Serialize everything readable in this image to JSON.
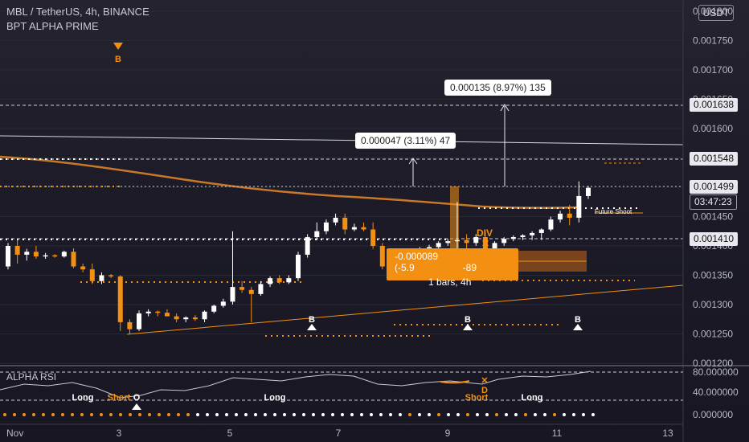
{
  "header": {
    "title": "MBL / TetherUS, 4h, BINANCE",
    "indicator": "BPT ALPHA PRIME",
    "currency_button": "USDT"
  },
  "price_axis": {
    "ticks": [
      "0.001800",
      "0.001750",
      "0.001700",
      "0.001650",
      "0.001600",
      "0.001550",
      "0.001500",
      "0.001450",
      "0.001400",
      "0.001350",
      "0.001300",
      "0.001250",
      "0.001200"
    ],
    "tags": {
      "top": "0.001638",
      "mid": "0.001548",
      "last": "0.001499",
      "countdown": "03:47:23",
      "low": "0.001410"
    }
  },
  "time_axis": {
    "ticks": [
      "Nov",
      "3",
      "5",
      "7",
      "9",
      "11",
      "13"
    ]
  },
  "annotations": {
    "measure_1": "0.000135 (8.97%) 135",
    "measure_2": "0.000047 (3.11%) 47",
    "measure_3_line1": "-0.000089 (-5.9                  -89",
    "measure_3_line2": "1 bars, 4h",
    "div_label": "DIV",
    "x_mark": "✕",
    "d_label": "D",
    "signal_b_top": "B",
    "signal_b_1": "B",
    "signal_b_2": "B",
    "signal_b_3": "B",
    "future_shoot": "Future Shoot"
  },
  "rsi_panel": {
    "title": "ALPHA RSI",
    "ticks": [
      "80.000000",
      "40.000000",
      "0.000000"
    ],
    "labels": {
      "long_1": "Long",
      "short_1": "Short",
      "o": "O",
      "long_2": "Long",
      "short_2": "Short",
      "long_3": "Long",
      "x": "✕",
      "d": "D"
    }
  },
  "colors": {
    "background": "#1c1b27",
    "candle_up": "#ffffff",
    "candle_down": "#f39012",
    "orange": "#f39012",
    "ma_line": "#c9782a",
    "label_bg": "#ffffff"
  },
  "chart_data": {
    "type": "candlestick",
    "symbol": "MBL / TetherUS",
    "interval": "4h",
    "exchange": "BINANCE",
    "price_range": [
      0.0012,
      0.0018
    ],
    "candles": [
      {
        "o": 0.001365,
        "h": 0.001405,
        "l": 0.00136,
        "c": 0.0014
      },
      {
        "o": 0.0014,
        "h": 0.00141,
        "l": 0.00137,
        "c": 0.001385
      },
      {
        "o": 0.001385,
        "h": 0.001395,
        "l": 0.001375,
        "c": 0.00139
      },
      {
        "o": 0.00139,
        "h": 0.0014,
        "l": 0.001378,
        "c": 0.001382
      },
      {
        "o": 0.001382,
        "h": 0.001388,
        "l": 0.001378,
        "c": 0.001384
      },
      {
        "o": 0.001384,
        "h": 0.001386,
        "l": 0.00138,
        "c": 0.001382
      },
      {
        "o": 0.001382,
        "h": 0.001392,
        "l": 0.00138,
        "c": 0.00139
      },
      {
        "o": 0.00139,
        "h": 0.001396,
        "l": 0.001362,
        "c": 0.001365
      },
      {
        "o": 0.001365,
        "h": 0.00137,
        "l": 0.001355,
        "c": 0.00136
      },
      {
        "o": 0.00136,
        "h": 0.00137,
        "l": 0.001335,
        "c": 0.00134
      },
      {
        "o": 0.00134,
        "h": 0.001355,
        "l": 0.001335,
        "c": 0.00135
      },
      {
        "o": 0.00135,
        "h": 0.001352,
        "l": 0.001345,
        "c": 0.001348
      },
      {
        "o": 0.001348,
        "h": 0.00135,
        "l": 0.001255,
        "c": 0.00127
      },
      {
        "o": 0.00127,
        "h": 0.001275,
        "l": 0.00125,
        "c": 0.001258
      },
      {
        "o": 0.001258,
        "h": 0.00129,
        "l": 0.001255,
        "c": 0.001285
      },
      {
        "o": 0.001285,
        "h": 0.001292,
        "l": 0.00128,
        "c": 0.001288
      },
      {
        "o": 0.001288,
        "h": 0.00129,
        "l": 0.00128,
        "c": 0.001286
      },
      {
        "o": 0.001286,
        "h": 0.001292,
        "l": 0.00128,
        "c": 0.00128
      },
      {
        "o": 0.00128,
        "h": 0.001285,
        "l": 0.00127,
        "c": 0.001275
      },
      {
        "o": 0.001275,
        "h": 0.00128,
        "l": 0.00127,
        "c": 0.001278
      },
      {
        "o": 0.001278,
        "h": 0.001282,
        "l": 0.001272,
        "c": 0.001275
      },
      {
        "o": 0.001275,
        "h": 0.00129,
        "l": 0.00127,
        "c": 0.001288
      },
      {
        "o": 0.001288,
        "h": 0.0013,
        "l": 0.001285,
        "c": 0.001298
      },
      {
        "o": 0.001298,
        "h": 0.00131,
        "l": 0.001295,
        "c": 0.001305
      },
      {
        "o": 0.001305,
        "h": 0.001425,
        "l": 0.0013,
        "c": 0.00133
      },
      {
        "o": 0.00133,
        "h": 0.00134,
        "l": 0.00132,
        "c": 0.001325
      },
      {
        "o": 0.001325,
        "h": 0.00133,
        "l": 0.00127,
        "c": 0.001318
      },
      {
        "o": 0.001318,
        "h": 0.00134,
        "l": 0.001315,
        "c": 0.001335
      },
      {
        "o": 0.001335,
        "h": 0.001348,
        "l": 0.00133,
        "c": 0.001345
      },
      {
        "o": 0.001345,
        "h": 0.00135,
        "l": 0.001335,
        "c": 0.001338
      },
      {
        "o": 0.001338,
        "h": 0.00135,
        "l": 0.001335,
        "c": 0.001345
      },
      {
        "o": 0.001345,
        "h": 0.00139,
        "l": 0.00134,
        "c": 0.001385
      },
      {
        "o": 0.001385,
        "h": 0.00142,
        "l": 0.00138,
        "c": 0.001415
      },
      {
        "o": 0.001415,
        "h": 0.00144,
        "l": 0.00141,
        "c": 0.001425
      },
      {
        "o": 0.001425,
        "h": 0.001445,
        "l": 0.00142,
        "c": 0.00144
      },
      {
        "o": 0.00144,
        "h": 0.001455,
        "l": 0.001435,
        "c": 0.001448
      },
      {
        "o": 0.001448,
        "h": 0.001455,
        "l": 0.00142,
        "c": 0.001428
      },
      {
        "o": 0.001428,
        "h": 0.001438,
        "l": 0.001425,
        "c": 0.001432
      },
      {
        "o": 0.001432,
        "h": 0.00144,
        "l": 0.001425,
        "c": 0.001428
      },
      {
        "o": 0.001428,
        "h": 0.00144,
        "l": 0.001395,
        "c": 0.0014
      },
      {
        "o": 0.0014,
        "h": 0.001405,
        "l": 0.00136,
        "c": 0.001365
      },
      {
        "o": 0.001365,
        "h": 0.00137,
        "l": 0.001345,
        "c": 0.00135
      },
      {
        "o": 0.00135,
        "h": 0.00138,
        "l": 0.001345,
        "c": 0.001372
      },
      {
        "o": 0.001372,
        "h": 0.001395,
        "l": 0.00137,
        "c": 0.00139
      },
      {
        "o": 0.00139,
        "h": 0.001398,
        "l": 0.001385,
        "c": 0.001392
      },
      {
        "o": 0.001392,
        "h": 0.001402,
        "l": 0.001385,
        "c": 0.001398
      },
      {
        "o": 0.001398,
        "h": 0.001408,
        "l": 0.001395,
        "c": 0.001405
      },
      {
        "o": 0.001405,
        "h": 0.001412,
        "l": 0.0014,
        "c": 0.001408
      },
      {
        "o": 0.001408,
        "h": 0.001475,
        "l": 0.001395,
        "c": 0.00141
      },
      {
        "o": 0.00141,
        "h": 0.00142,
        "l": 0.001395,
        "c": 0.001405
      },
      {
        "o": 0.001405,
        "h": 0.00142,
        "l": 0.0014,
        "c": 0.001415
      },
      {
        "o": 0.001415,
        "h": 0.001425,
        "l": 0.00139,
        "c": 0.001395
      },
      {
        "o": 0.001395,
        "h": 0.001408,
        "l": 0.00139,
        "c": 0.001405
      },
      {
        "o": 0.001405,
        "h": 0.001415,
        "l": 0.0014,
        "c": 0.001412
      },
      {
        "o": 0.001412,
        "h": 0.001418,
        "l": 0.001408,
        "c": 0.001415
      },
      {
        "o": 0.001415,
        "h": 0.00142,
        "l": 0.00141,
        "c": 0.001418
      },
      {
        "o": 0.001418,
        "h": 0.001425,
        "l": 0.00141,
        "c": 0.001422
      },
      {
        "o": 0.001422,
        "h": 0.00143,
        "l": 0.00141,
        "c": 0.001428
      },
      {
        "o": 0.001428,
        "h": 0.00145,
        "l": 0.001425,
        "c": 0.001445
      },
      {
        "o": 0.001445,
        "h": 0.00146,
        "l": 0.00144,
        "c": 0.001455
      },
      {
        "o": 0.001455,
        "h": 0.00147,
        "l": 0.001435,
        "c": 0.001448
      },
      {
        "o": 0.001448,
        "h": 0.00151,
        "l": 0.00144,
        "c": 0.001485
      },
      {
        "o": 0.001485,
        "h": 0.001502,
        "l": 0.00148,
        "c": 0.001499
      }
    ],
    "levels": [
      0.001638,
      0.001548,
      0.001499,
      0.00141
    ],
    "rsi": {
      "range": [
        0,
        80
      ],
      "levels": [
        80,
        40,
        0
      ]
    }
  }
}
